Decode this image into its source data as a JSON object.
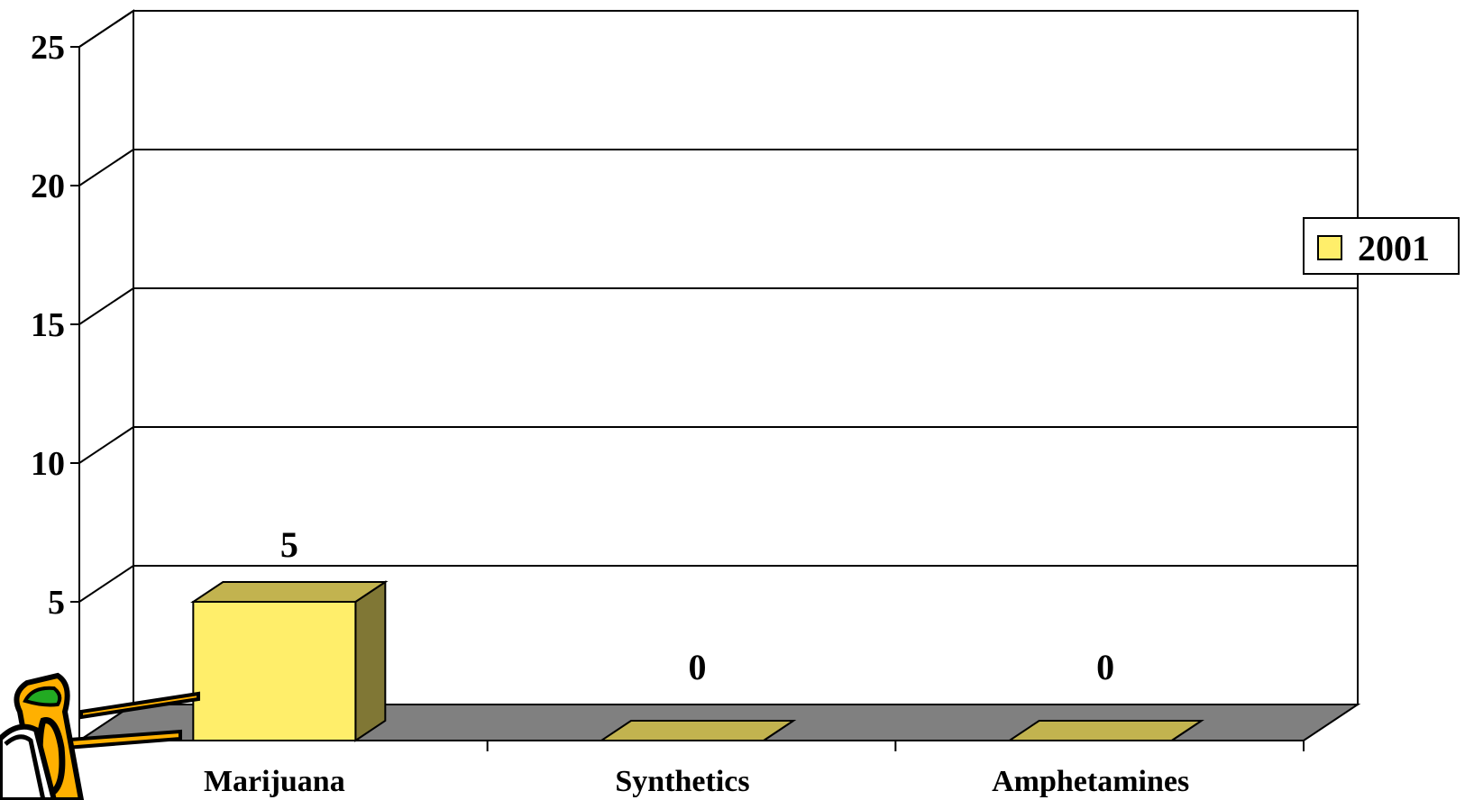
{
  "chart_data": {
    "type": "bar",
    "title": "",
    "xlabel": "",
    "ylabel": "",
    "categories": [
      "Marijuana",
      "Synthetics",
      "Amphetamines"
    ],
    "series": [
      {
        "name": "2001",
        "values": [
          5,
          0,
          0
        ]
      }
    ],
    "data_labels": [
      "5",
      "0",
      "0"
    ],
    "y_ticks": [
      "5",
      "10",
      "15",
      "20",
      "25"
    ],
    "ylim": [
      0,
      25
    ],
    "grid": true,
    "three_d": true,
    "legend": {
      "position": "right",
      "entries": [
        "2001"
      ]
    },
    "colors": {
      "bar_front": "#FFEE6A",
      "bar_top": "#C2B34F",
      "bar_side": "#807735",
      "floor": "#808080",
      "wall": "#FFFFFF",
      "gridline": "#000000"
    }
  },
  "decoration": {
    "clipart": "paper-clip-clipart"
  }
}
